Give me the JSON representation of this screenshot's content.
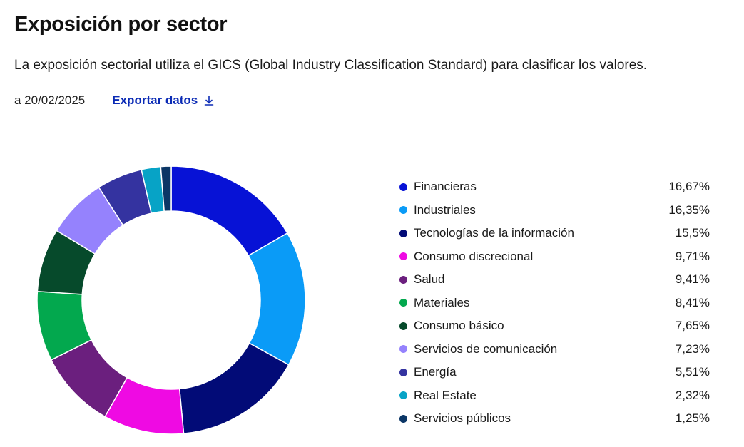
{
  "header": {
    "title": "Exposición por sector",
    "description": "La exposición sectorial utiliza el GICS (Global Industry Classification Standard) para clasificar los valores.",
    "as_of": "a 20/02/2025",
    "export_label": "Exportar datos",
    "export_icon": "download-icon",
    "link_color": "#0b2bb5"
  },
  "chart_data": {
    "type": "pie",
    "donut": true,
    "legend_position": "right",
    "categories": [
      "Financieras",
      "Industriales",
      "Tecnologías de la información",
      "Consumo discrecional",
      "Salud",
      "Materiales",
      "Consumo básico",
      "Servicios de comunicación",
      "Energía",
      "Real Estate",
      "Servicios públicos"
    ],
    "values": [
      16.67,
      16.35,
      15.5,
      9.71,
      9.41,
      8.41,
      7.65,
      7.23,
      5.51,
      2.32,
      1.25
    ],
    "value_labels": [
      "16,67%",
      "16,35%",
      "15,5%",
      "9,71%",
      "9,41%",
      "8,41%",
      "7,65%",
      "7,23%",
      "5,51%",
      "2,32%",
      "1,25%"
    ],
    "colors": [
      "#0712d6",
      "#0a9bf7",
      "#020b77",
      "#ef0ae3",
      "#6b1f7e",
      "#03a84e",
      "#064a2b",
      "#9582fd",
      "#3433a0",
      "#07a3c6",
      "#0b3666"
    ]
  }
}
